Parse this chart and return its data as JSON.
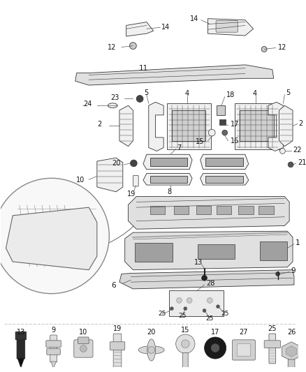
{
  "bg_color": "#ffffff",
  "fig_width": 4.38,
  "fig_height": 5.33,
  "dpi": 100,
  "line_color": "#333333",
  "lw": 0.6
}
